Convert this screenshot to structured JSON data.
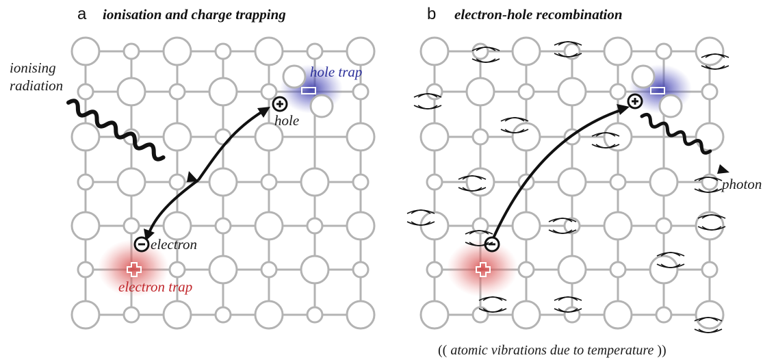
{
  "panels": [
    {
      "letter": "a",
      "title": "ionisation and charge trapping"
    },
    {
      "letter": "b",
      "title": "electron-hole recombination"
    }
  ],
  "labels": {
    "ionising_line1": "ionising",
    "ionising_line2": "radiation",
    "hole_trap": "hole trap",
    "hole": "hole",
    "electron": "electron",
    "electron_trap": "electron trap",
    "photon": "photon"
  },
  "footnote": {
    "open": "((",
    "text": "atomic vibrations due to temperature",
    "close": "))"
  },
  "colors": {
    "lattice": "#b3b3b3",
    "hole_trap": "#3a3aa8",
    "electron_trap": "#d23a3a",
    "arrow": "#111111"
  }
}
